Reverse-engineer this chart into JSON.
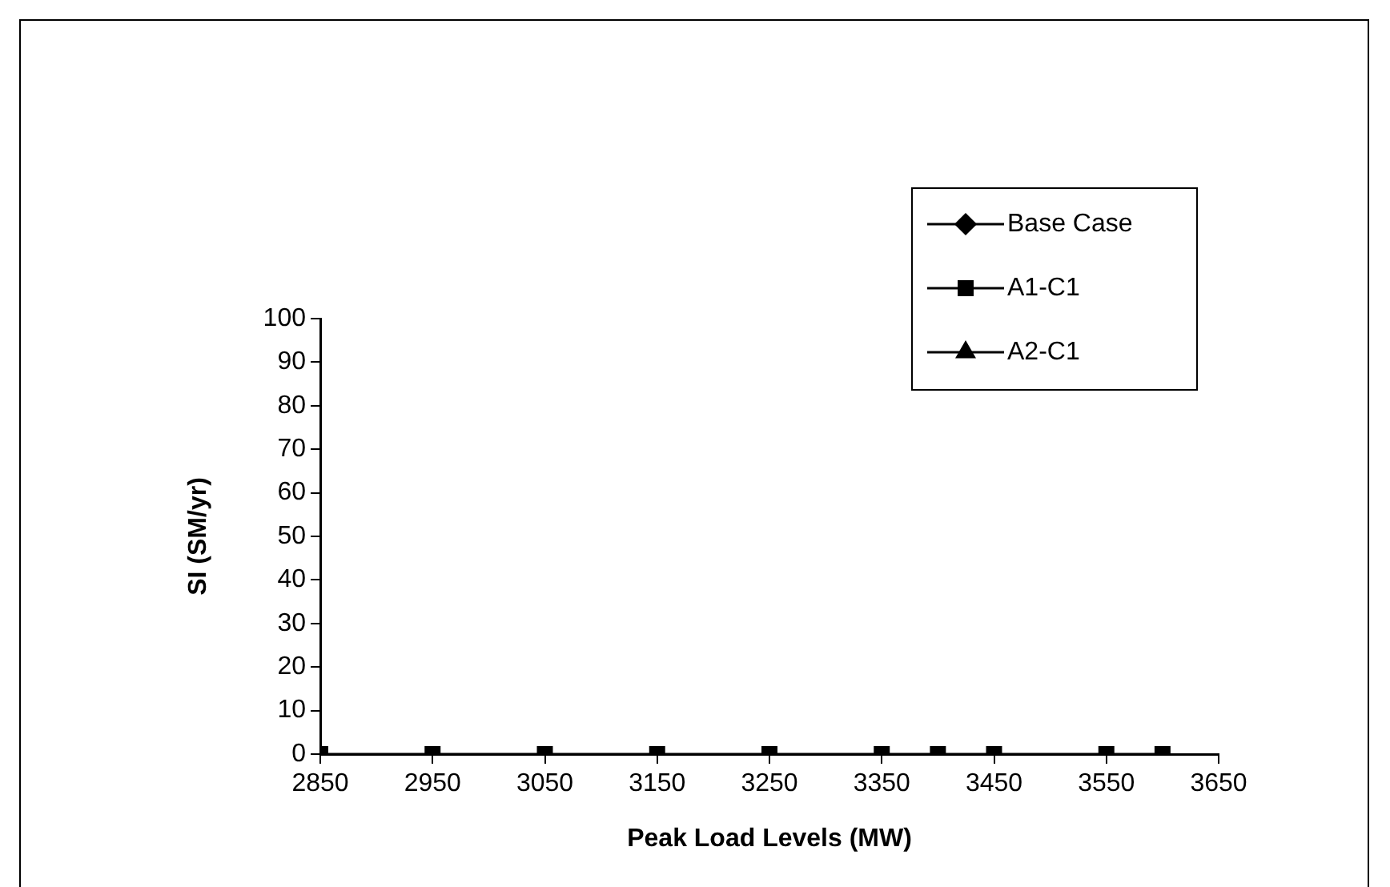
{
  "chart_data": {
    "type": "line",
    "xlabel": "Peak Load Levels (MW)",
    "ylabel": "SI (SM/yr)",
    "x": [
      2850,
      2950,
      3050,
      3150,
      3250,
      3350,
      3400,
      3450,
      3550,
      3600
    ],
    "series": [
      {
        "name": "Base Case",
        "color": "#000000",
        "marker": "diamond",
        "values": [
          null,
          null,
          null,
          null,
          null,
          null,
          null,
          null,
          null,
          null
        ]
      },
      {
        "name": "A1-C1",
        "color": "#000000",
        "marker": "square",
        "values": [
          0,
          0,
          0,
          0,
          0,
          0,
          0,
          0,
          0,
          0
        ]
      },
      {
        "name": "A2-C1",
        "color": "#000000",
        "marker": "triangle",
        "values": [
          null,
          null,
          null,
          null,
          null,
          null,
          null,
          null,
          null,
          null
        ]
      }
    ],
    "xlim": [
      2850,
      3650
    ],
    "xticks": [
      2850,
      2950,
      3050,
      3150,
      3250,
      3350,
      3450,
      3550,
      3650
    ],
    "ylim": [
      0,
      100
    ],
    "yticks": [
      0,
      10,
      20,
      30,
      40,
      50,
      60,
      70,
      80,
      90,
      100
    ],
    "grid": false,
    "legend": "top right",
    "line_style": "solid"
  }
}
